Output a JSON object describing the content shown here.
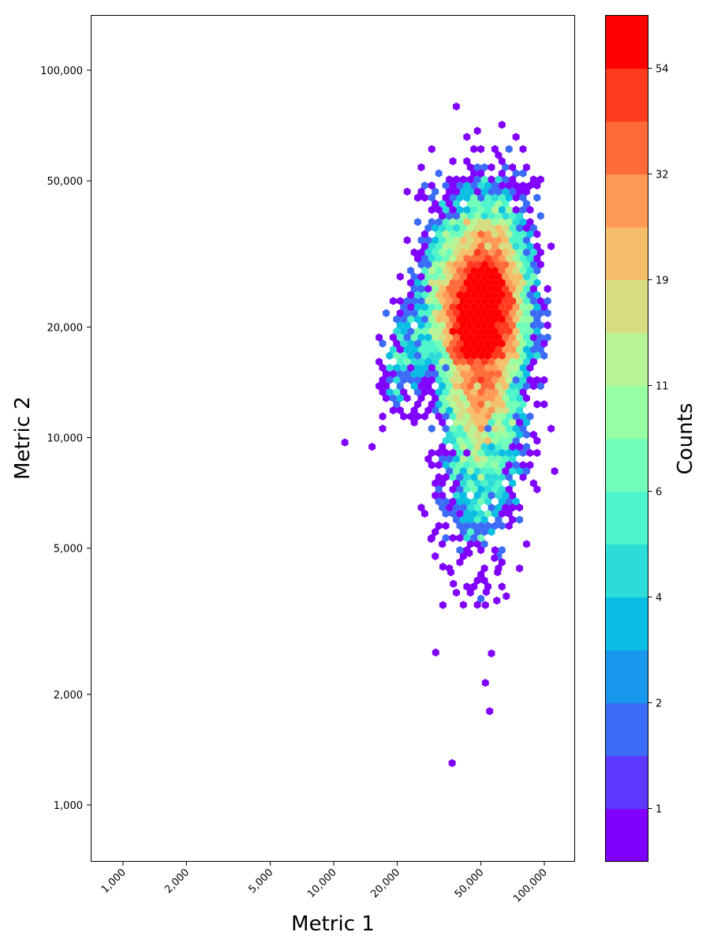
{
  "chart_data": {
    "type": "heatmap",
    "subtype": "hexbin",
    "title": "",
    "xlabel": "Metric 1",
    "ylabel": "Metric 2",
    "xscale": "log",
    "yscale": "log",
    "xlim": [
      800,
      130000
    ],
    "ylim": [
      720,
      140000
    ],
    "xticks": [
      1000,
      2000,
      5000,
      10000,
      20000,
      50000,
      100000
    ],
    "xtick_labels": [
      "1,000",
      "2,000",
      "5,000",
      "10,000",
      "20,000",
      "50,000",
      "100,000"
    ],
    "yticks": [
      1000,
      2000,
      5000,
      10000,
      20000,
      50000,
      100000
    ],
    "ytick_labels": [
      "1,000",
      "2,000",
      "5,000",
      "10,000",
      "20,000",
      "50,000",
      "100,000"
    ],
    "grid": false,
    "colorbar": {
      "label": "Counts",
      "tick_labels": [
        "1",
        "2",
        "4",
        "6",
        "11",
        "19",
        "32",
        "54"
      ],
      "scale": "log-binned (16 discrete levels)",
      "colors": [
        "#7f00ff",
        "#5e37fd",
        "#3b6bf7",
        "#1997ec",
        "#0abde3",
        "#2bdcd8",
        "#4ef4ca",
        "#72feb8",
        "#98fea4",
        "#b7f596",
        "#d6dd82",
        "#f5be6b",
        "#ff9955",
        "#ff6a3a",
        "#ff3a1e",
        "#ff0000"
      ]
    },
    "distribution": {
      "description": "Single dense cluster; peak density near Metric 1 ≈ 50,000, Metric 2 ≈ 21,000; long sparse tail toward low Metric 2",
      "peak": {
        "metric1": 50000,
        "metric2": 21000,
        "max_count": 60
      },
      "metric1_range": [
        11000,
        90000
      ],
      "metric2_range": [
        1300,
        38000
      ],
      "outliers": [
        {
          "metric1": 11300,
          "metric2": 9700
        },
        {
          "metric1": 30500,
          "metric2": 2600
        },
        {
          "metric1": 52500,
          "metric2": 2150
        },
        {
          "metric1": 55000,
          "metric2": 1800
        },
        {
          "metric1": 36500,
          "metric2": 1300
        },
        {
          "metric1": 33000,
          "metric2": 3500
        },
        {
          "metric1": 52500,
          "metric2": 3500
        },
        {
          "metric1": 59500,
          "metric2": 3600
        },
        {
          "metric1": 66000,
          "metric2": 3700
        },
        {
          "metric1": 37000,
          "metric2": 4000
        },
        {
          "metric1": 33000,
          "metric2": 4450
        },
        {
          "metric1": 36000,
          "metric2": 4300
        },
        {
          "metric1": 58000,
          "metric2": 4700
        },
        {
          "metric1": 60000,
          "metric2": 4300
        },
        {
          "metric1": 44000,
          "metric2": 4850
        },
        {
          "metric1": 29000,
          "metric2": 5300
        },
        {
          "metric1": 53000,
          "metric2": 3800
        }
      ]
    }
  },
  "figure": {
    "colorbar_label": "Counts"
  }
}
